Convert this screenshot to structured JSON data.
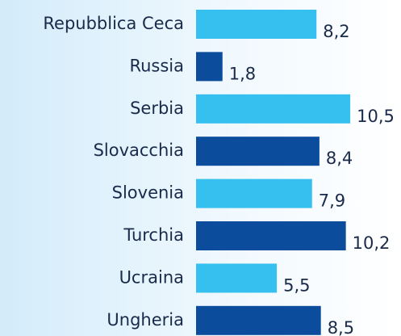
{
  "chart_data": {
    "type": "bar",
    "orientation": "horizontal",
    "categories": [
      "Repubblica Ceca",
      "Russia",
      "Serbia",
      "Slovacchia",
      "Slovenia",
      "Turchia",
      "Ucraina",
      "Ungheria"
    ],
    "values": [
      8.2,
      1.8,
      10.5,
      8.4,
      7.9,
      10.2,
      5.5,
      8.5
    ],
    "value_labels": [
      "8,2",
      "1,8",
      "10,5",
      "8,4",
      "7,9",
      "10,2",
      "5,5",
      "8,5"
    ],
    "colors": [
      "#35c0f0",
      "#0b4c9c",
      "#35c0f0",
      "#0b4c9c",
      "#35c0f0",
      "#0b4c9c",
      "#35c0f0",
      "#0b4c9c"
    ]
  }
}
